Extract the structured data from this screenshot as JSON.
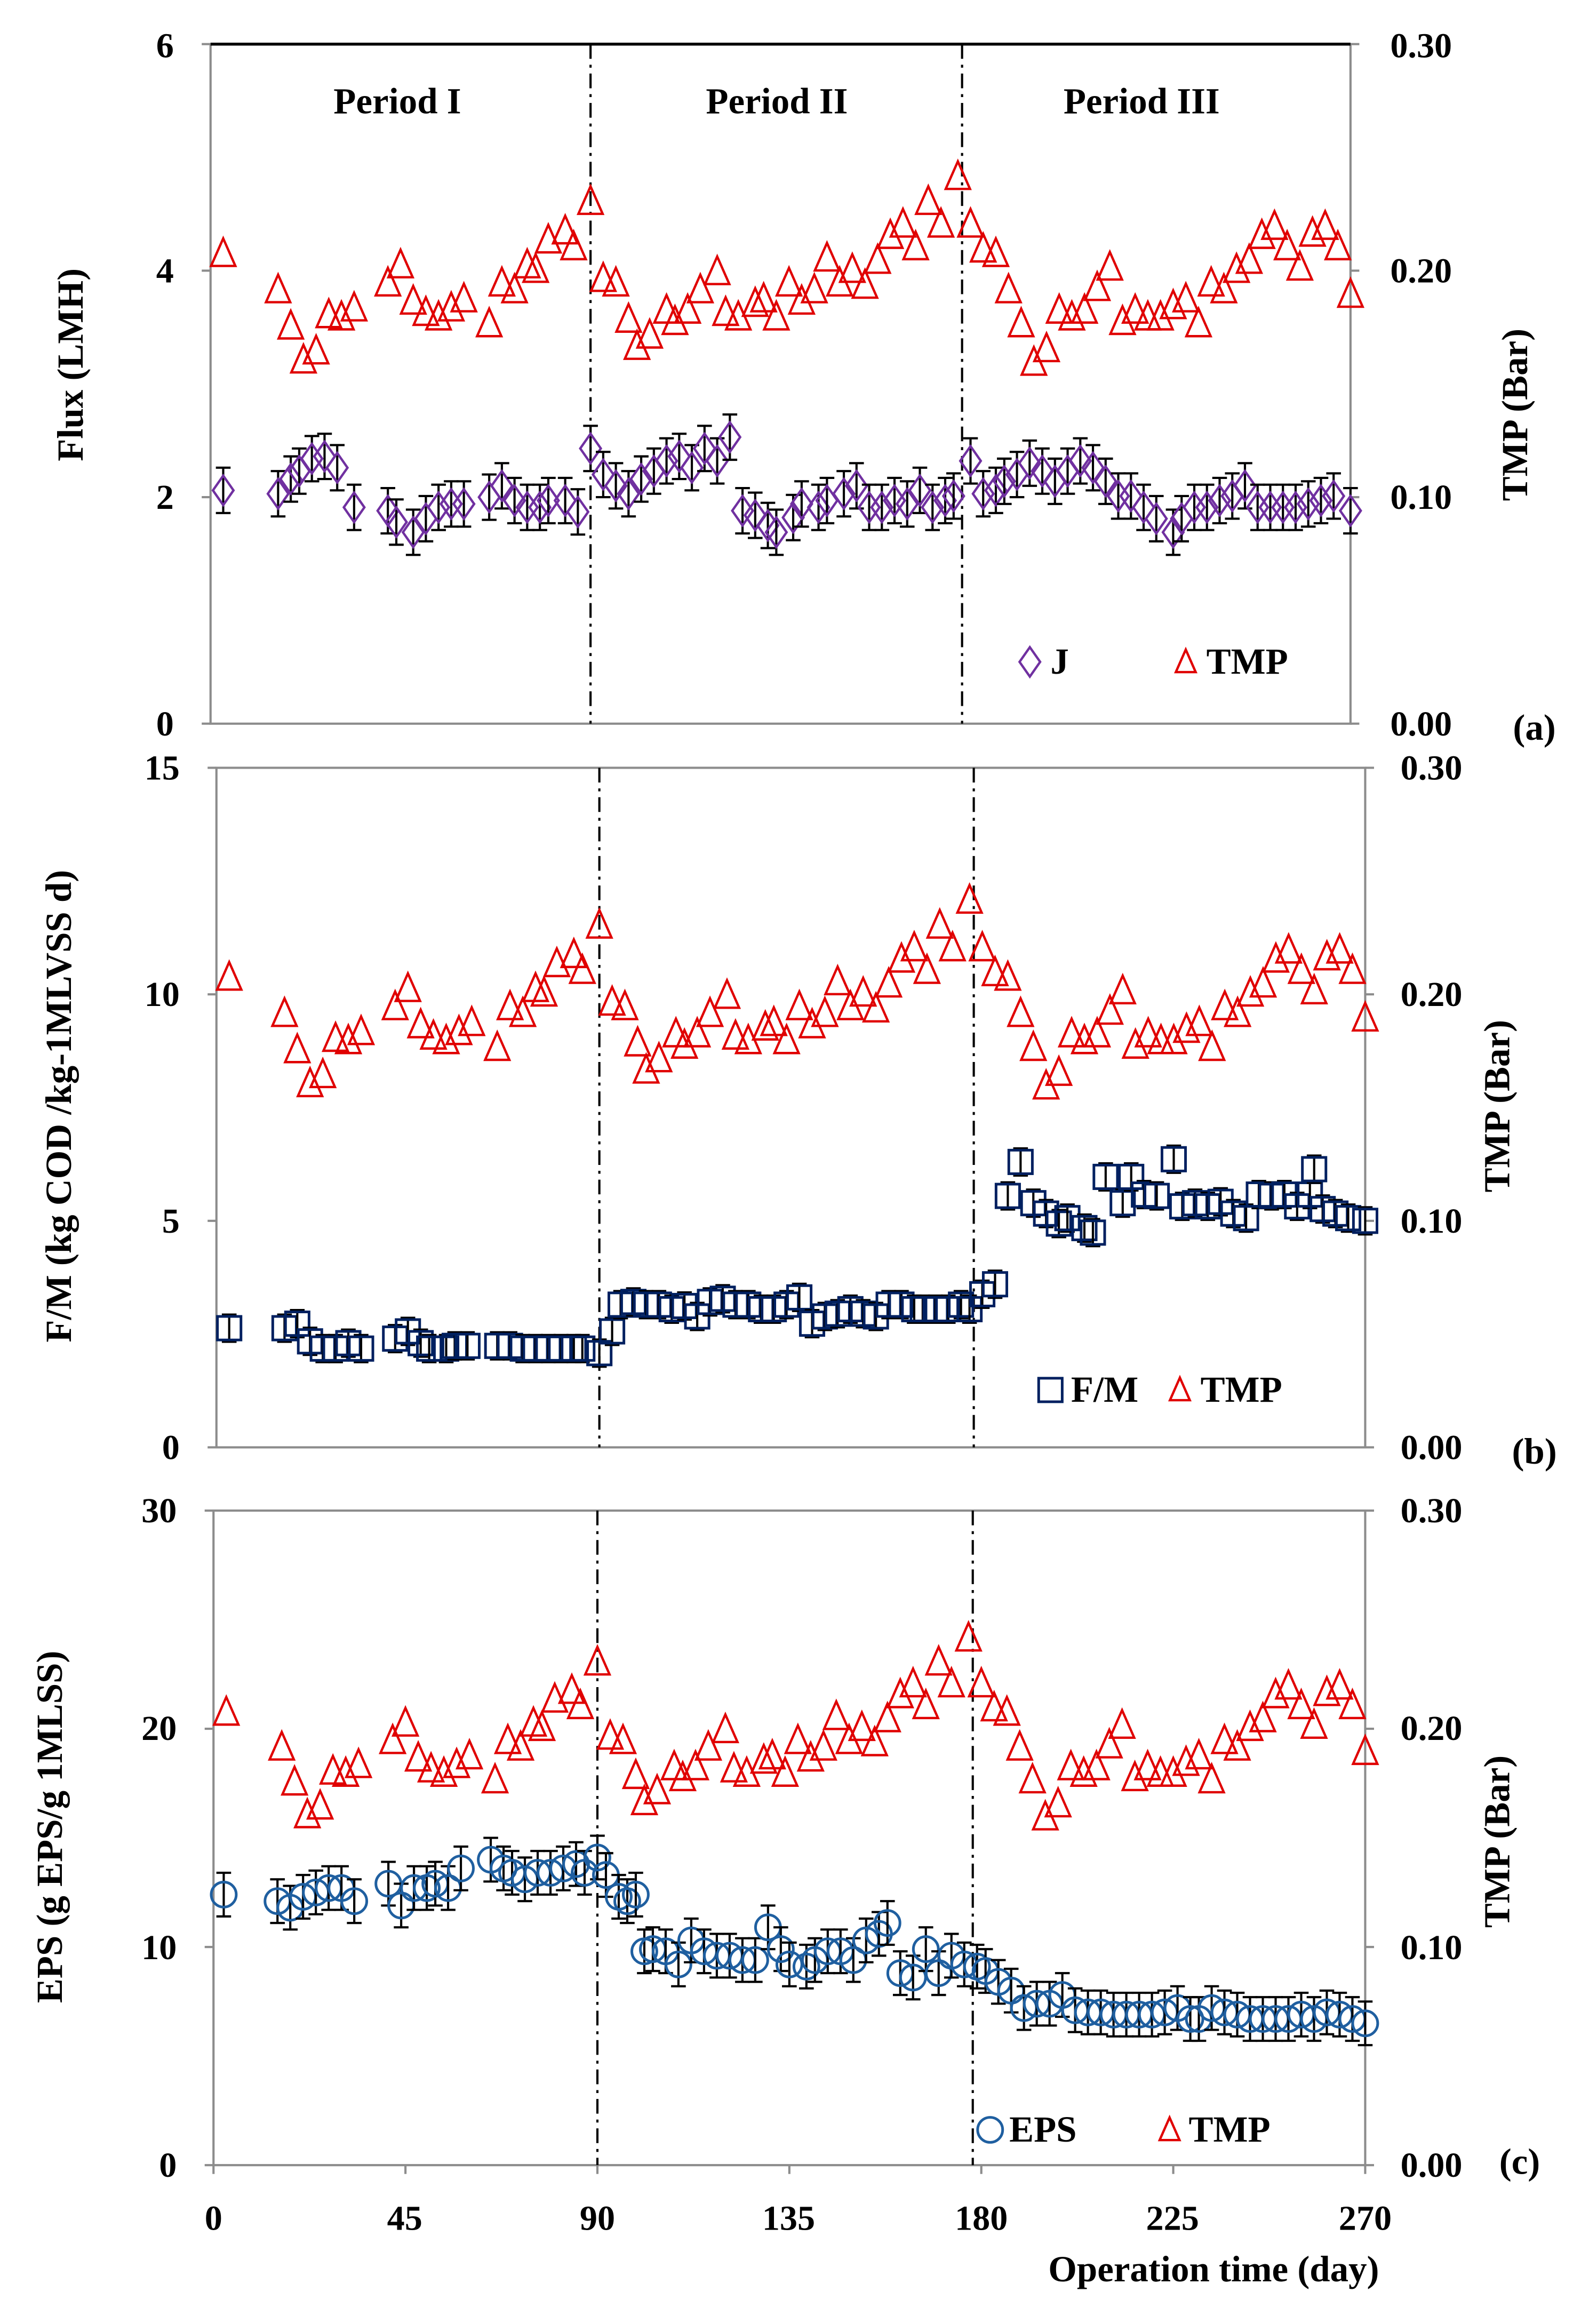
{
  "colors": {
    "J": "#7030A0",
    "FM": "#002060",
    "EPS": "#1F5FA0",
    "TMP": "#E00000",
    "frame": "#8C8C8C"
  },
  "chart_data": {
    "type": "scatter",
    "xlabel": "Operation time (day)",
    "xlim": [
      0,
      270
    ],
    "xticks": [
      "0",
      "45",
      "90",
      "135",
      "180",
      "225",
      "270"
    ],
    "period_boundaries": [
      90,
      178
    ],
    "period_labels": [
      "Period I",
      "Period II",
      "Period III"
    ],
    "tmp": {
      "name": "TMP",
      "ylabel": "TMP (Bar)",
      "ylim": [
        0,
        0.3
      ],
      "yticks": [
        "0.00",
        "0.10",
        "0.20",
        "0.30"
      ],
      "x": [
        3,
        16,
        19,
        22,
        25,
        28,
        31,
        34,
        42,
        45,
        48,
        51,
        54,
        57,
        60,
        66,
        69,
        72,
        75,
        77,
        80,
        84,
        86,
        90,
        93,
        96,
        99,
        101,
        104,
        108,
        110,
        113,
        116,
        120,
        122,
        125,
        129,
        131,
        134,
        137,
        140,
        143,
        146,
        149,
        152,
        155,
        158,
        161,
        164,
        167,
        170,
        173,
        177,
        180,
        183,
        186,
        189,
        192,
        195,
        198,
        201,
        204,
        207,
        210,
        213,
        216,
        219,
        222,
        225,
        228,
        231,
        234,
        237,
        240,
        243,
        246,
        249,
        252,
        255,
        258,
        261,
        264,
        267,
        270
      ],
      "y": [
        0.206,
        0.19,
        0.174,
        0.159,
        0.163,
        0.179,
        0.178,
        0.182,
        0.193,
        0.201,
        0.185,
        0.18,
        0.178,
        0.182,
        0.186,
        0.175,
        0.193,
        0.19,
        0.201,
        0.199,
        0.212,
        0.216,
        0.209,
        0.229,
        0.195,
        0.193,
        0.177,
        0.165,
        0.17,
        0.181,
        0.176,
        0.181,
        0.19,
        0.198,
        0.18,
        0.178,
        0.184,
        0.186,
        0.178,
        0.193,
        0.185,
        0.19,
        0.204,
        0.193,
        0.199,
        0.192,
        0.203,
        0.214,
        0.219,
        0.209,
        0.229,
        0.219,
        0.24,
        0.219,
        0.208,
        0.206,
        0.19,
        0.175,
        0.158,
        0.164,
        0.181,
        0.178,
        0.181,
        0.191,
        0.2,
        0.176,
        0.181,
        0.178,
        0.178,
        0.183,
        0.186,
        0.175,
        0.193,
        0.19,
        0.199,
        0.203,
        0.214,
        0.218,
        0.209,
        0.2,
        0.215,
        0.218,
        0.209,
        0.188
      ]
    },
    "panels": [
      {
        "panel_label": "(a)",
        "series_name": "J",
        "ylabel": "Flux (LMH)",
        "ylim": [
          0,
          6
        ],
        "yticks": [
          "0",
          "2",
          "4",
          "6"
        ],
        "marker": "diamond",
        "error": 0.2,
        "x": [
          3,
          16,
          19,
          21,
          24,
          27,
          30,
          34,
          42,
          44,
          48,
          51,
          54,
          57,
          60,
          66,
          69,
          72,
          75,
          78,
          80,
          84,
          87,
          90,
          93,
          96,
          99,
          102,
          105,
          108,
          111,
          114,
          117,
          120,
          123,
          126,
          129,
          132,
          134,
          138,
          140,
          144,
          146,
          150,
          153,
          156,
          159,
          162,
          165,
          168,
          171,
          174,
          176,
          180,
          183,
          186,
          188,
          191,
          194,
          197,
          200,
          203,
          206,
          209,
          212,
          215,
          218,
          221,
          224,
          228,
          230,
          233,
          236,
          239,
          242,
          245,
          248,
          251,
          254,
          257,
          260,
          263,
          266,
          270
        ],
        "y": [
          2.06,
          2.03,
          2.16,
          2.23,
          2.34,
          2.36,
          2.26,
          1.91,
          1.88,
          1.78,
          1.69,
          1.81,
          1.91,
          1.94,
          1.94,
          2.0,
          2.1,
          1.97,
          1.91,
          1.91,
          1.97,
          1.97,
          1.87,
          2.43,
          2.2,
          2.1,
          2.03,
          2.16,
          2.23,
          2.32,
          2.36,
          2.26,
          2.43,
          2.32,
          2.53,
          1.88,
          1.84,
          1.75,
          1.69,
          1.82,
          1.94,
          1.91,
          1.97,
          2.03,
          2.1,
          1.91,
          1.91,
          1.97,
          1.94,
          2.06,
          1.91,
          1.97,
          2.01,
          2.32,
          2.03,
          2.06,
          2.14,
          2.2,
          2.3,
          2.23,
          2.14,
          2.23,
          2.32,
          2.26,
          2.14,
          2.01,
          2.01,
          1.91,
          1.81,
          1.69,
          1.81,
          1.91,
          1.91,
          1.97,
          2.01,
          2.1,
          1.91,
          1.91,
          1.91,
          1.91,
          1.94,
          1.97,
          2.01,
          1.88
        ]
      },
      {
        "panel_label": "(b)",
        "series_name": "F/M",
        "ylabel": "F/M (kg COD /kg-1MLVSS d)",
        "ylim": [
          0,
          15
        ],
        "yticks": [
          "0",
          "5",
          "10",
          "15"
        ],
        "marker": "square",
        "error": 0.3,
        "x": [
          3,
          16,
          19,
          22,
          25,
          28,
          31,
          34,
          42,
          45,
          48,
          50,
          54,
          56,
          59,
          66,
          69,
          72,
          75,
          78,
          81,
          84,
          86,
          90,
          93,
          95,
          98,
          101,
          104,
          107,
          110,
          113,
          116,
          119,
          122,
          125,
          128,
          131,
          134,
          137,
          140,
          143,
          146,
          149,
          152,
          155,
          158,
          161,
          164,
          166,
          169,
          172,
          175,
          177,
          180,
          183,
          186,
          189,
          192,
          195,
          198,
          200,
          204,
          206,
          209,
          213,
          215,
          218,
          221,
          225,
          227,
          230,
          233,
          236,
          239,
          242,
          245,
          248,
          251,
          254,
          257,
          258,
          260,
          263,
          266,
          270
        ],
        "y": [
          2.63,
          2.63,
          2.73,
          2.34,
          2.18,
          2.18,
          2.3,
          2.18,
          2.4,
          2.56,
          2.3,
          2.18,
          2.18,
          2.24,
          2.24,
          2.24,
          2.24,
          2.18,
          2.18,
          2.18,
          2.18,
          2.18,
          2.18,
          2.08,
          2.56,
          3.15,
          3.21,
          3.15,
          3.15,
          3.05,
          3.12,
          2.89,
          3.21,
          3.28,
          3.15,
          3.15,
          3.05,
          3.05,
          3.15,
          3.31,
          2.73,
          2.89,
          2.95,
          3.05,
          2.95,
          2.89,
          3.15,
          3.15,
          3.05,
          3.05,
          3.05,
          3.05,
          3.15,
          3.05,
          3.38,
          3.6,
          5.55,
          6.3,
          5.39,
          5.16,
          4.94,
          5.06,
          4.84,
          4.74,
          5.97,
          5.39,
          5.97,
          5.58,
          5.55,
          6.36,
          5.32,
          5.39,
          5.32,
          5.42,
          5.16,
          5.06,
          5.58,
          5.55,
          5.58,
          5.32,
          5.58,
          6.14,
          5.26,
          5.16,
          5.06,
          5.0
        ]
      },
      {
        "panel_label": "(c)",
        "series_name": "EPS",
        "ylabel": "EPS (g EPS/g 1MLSS)",
        "ylim": [
          0,
          30
        ],
        "yticks": [
          "0",
          "10",
          "20",
          "30"
        ],
        "marker": "circle",
        "error": 1.0,
        "x": [
          2.4,
          15,
          18,
          21,
          24,
          27,
          30,
          33,
          41,
          44,
          47,
          50,
          52,
          55,
          58,
          65,
          68,
          70,
          73,
          76,
          79,
          82,
          85,
          87,
          90,
          92,
          95,
          97,
          99,
          101,
          103,
          106,
          109,
          112,
          115,
          118,
          121,
          124,
          127,
          130,
          133,
          135,
          139,
          141,
          144,
          147,
          150,
          153,
          156,
          158,
          161,
          164,
          167,
          170,
          173,
          176,
          179,
          181,
          184,
          187,
          190,
          193,
          196,
          199,
          202,
          205,
          208,
          211,
          214,
          217,
          220,
          223,
          226,
          229,
          231,
          234,
          237,
          240,
          243,
          246,
          249,
          252,
          255,
          258,
          261,
          264,
          267,
          270
        ],
        "y": [
          12.4,
          12.1,
          11.8,
          12.3,
          12.5,
          12.7,
          12.7,
          12.1,
          12.9,
          11.9,
          12.7,
          12.7,
          12.9,
          12.7,
          13.6,
          14.0,
          13.6,
          13.4,
          13.1,
          13.4,
          13.4,
          13.6,
          13.8,
          13.4,
          14.1,
          13.3,
          12.3,
          12.1,
          12.4,
          9.8,
          9.9,
          9.8,
          9.2,
          10.3,
          9.8,
          9.6,
          9.6,
          9.4,
          9.4,
          10.9,
          9.9,
          9.2,
          9.1,
          9.4,
          9.8,
          9.8,
          9.4,
          10.3,
          10.6,
          11.1,
          8.8,
          8.6,
          9.9,
          8.8,
          9.6,
          9.2,
          9.1,
          8.9,
          8.4,
          8.0,
          7.2,
          7.4,
          7.4,
          7.8,
          7.1,
          7.0,
          7.0,
          6.9,
          6.9,
          6.9,
          6.9,
          7.0,
          7.2,
          6.7,
          6.7,
          7.2,
          7.0,
          6.9,
          6.7,
          6.7,
          6.7,
          6.7,
          6.9,
          6.7,
          7.0,
          6.9,
          6.7,
          6.5
        ]
      }
    ]
  }
}
